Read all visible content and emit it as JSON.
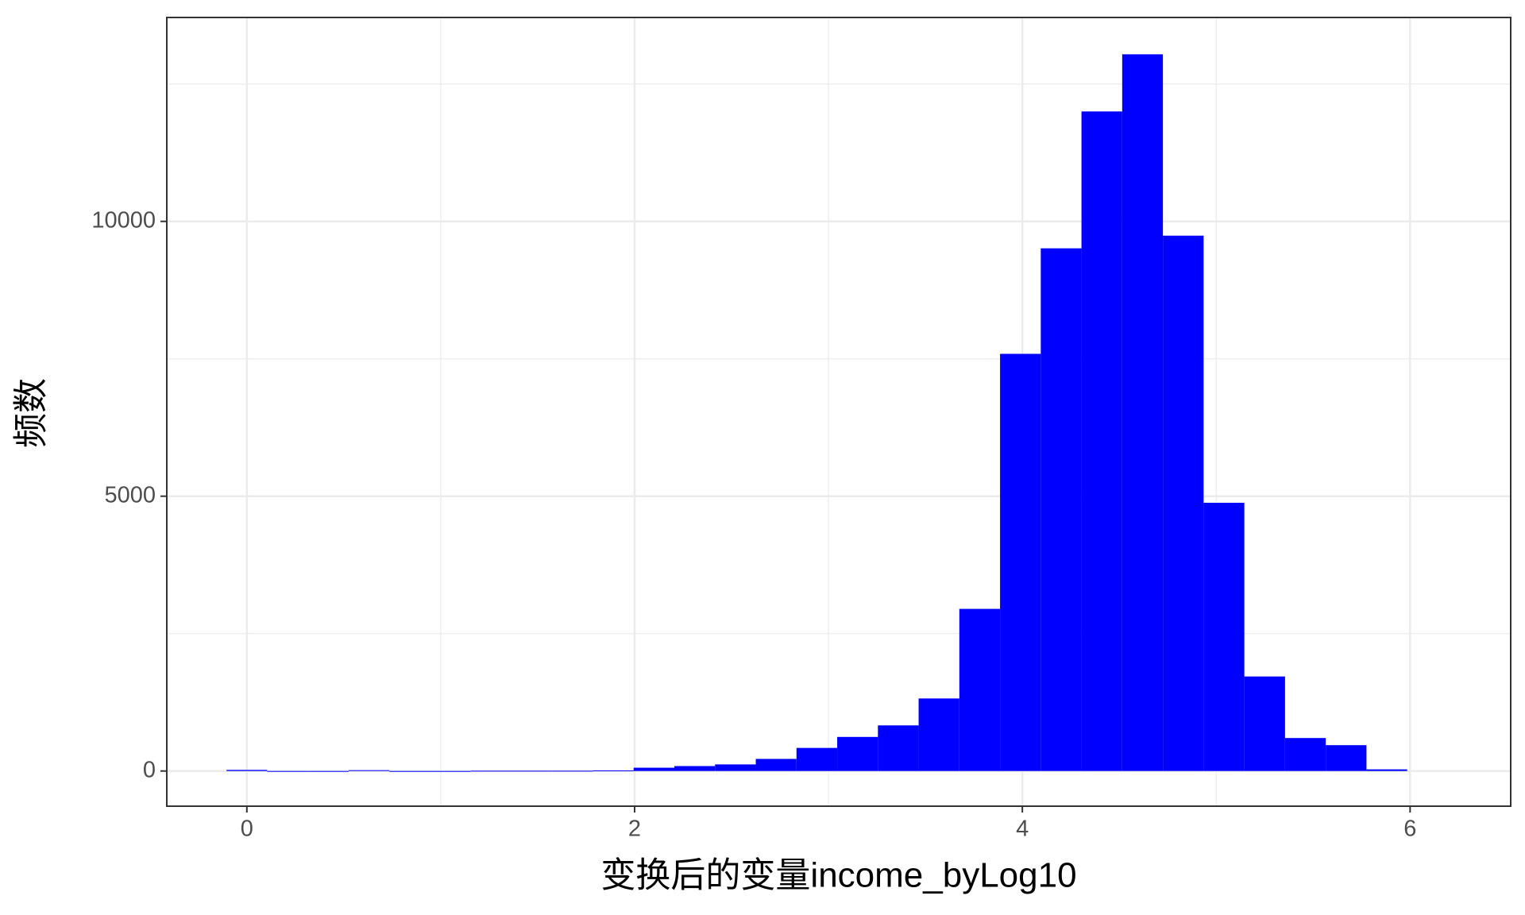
{
  "chart_data": {
    "type": "histogram",
    "x_label": "变换后的变量income_byLog10",
    "y_label": "频数",
    "color": "#0000ff",
    "bins": [
      -0.105,
      0.105,
      0.315,
      0.525,
      0.735,
      0.945,
      1.155,
      1.365,
      1.575,
      1.785,
      1.995,
      2.205,
      2.415,
      2.625,
      2.835,
      3.045,
      3.255,
      3.465,
      3.675,
      3.885,
      4.095,
      4.305,
      4.515,
      4.725,
      4.935,
      5.145,
      5.355,
      5.565,
      5.775,
      5.985
    ],
    "values": [
      20,
      0,
      0,
      15,
      0,
      0,
      5,
      5,
      5,
      10,
      60,
      90,
      120,
      220,
      420,
      620,
      830,
      1320,
      2950,
      7590,
      9510,
      12000,
      13040,
      9740,
      4880,
      1720,
      600,
      470,
      30
    ],
    "xlim": [
      -0.413,
      6.519
    ],
    "ylim": [
      -640,
      13710
    ],
    "xticks": [
      0,
      2,
      4,
      6
    ],
    "yticks": [
      0,
      5000,
      10000
    ],
    "grid": true
  }
}
